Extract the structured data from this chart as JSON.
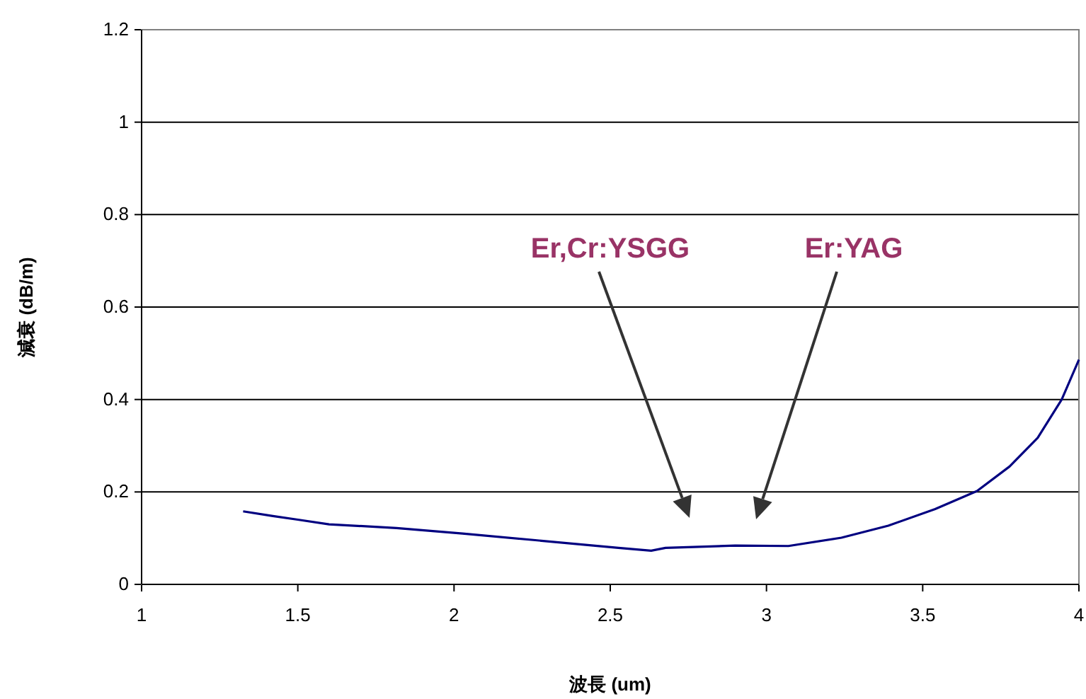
{
  "chart_data": {
    "type": "line",
    "xlabel": "波長 (um)",
    "ylabel": "減衰 (dB/m)",
    "x": [
      1.325,
      1.42,
      1.5,
      1.6,
      1.816,
      2.027,
      2.254,
      2.526,
      2.631,
      2.677,
      2.767,
      2.9,
      3.07,
      3.24,
      3.39,
      3.54,
      3.674,
      3.778,
      3.868,
      3.945,
      4.0
    ],
    "series": [
      {
        "color": "#000080",
        "values": [
          0.158,
          0.148,
          0.14,
          0.13,
          0.122,
          0.11,
          0.096,
          0.079,
          0.073,
          0.079,
          0.081,
          0.084,
          0.083,
          0.101,
          0.127,
          0.163,
          0.202,
          0.255,
          0.317,
          0.4,
          0.486
        ]
      }
    ],
    "xlim": [
      1,
      4
    ],
    "xticks": [
      1,
      1.5,
      2,
      2.5,
      3,
      3.5,
      4
    ],
    "ylim": [
      0,
      1.2
    ],
    "yticks": [
      0,
      0.2,
      0.4,
      0.6,
      0.8,
      1,
      1.2
    ],
    "grid": "y",
    "marker": "none",
    "line_style": "solid",
    "annotations": [
      "Er,Cr:YSGG",
      "Er:YAG"
    ]
  }
}
